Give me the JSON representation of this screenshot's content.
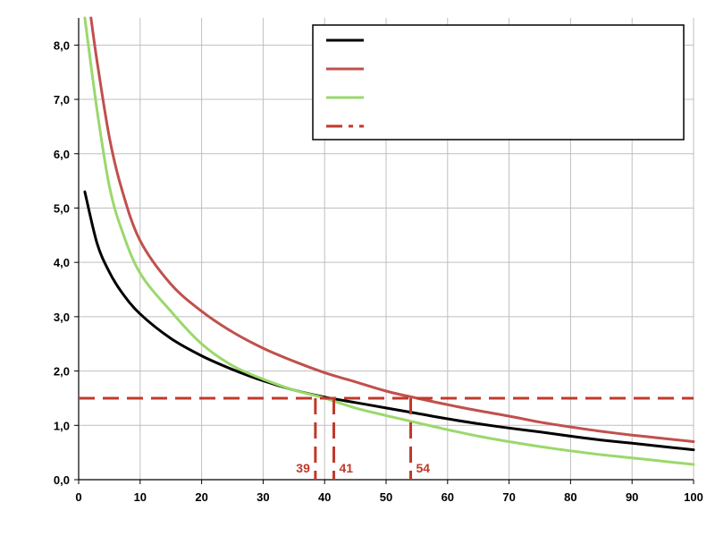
{
  "chart_data": {
    "type": "line",
    "title": "",
    "xlabel": "",
    "ylabel": "",
    "xlim": [
      0,
      100
    ],
    "ylim": [
      0,
      8.5
    ],
    "x_ticks": [
      0,
      10,
      20,
      30,
      40,
      50,
      60,
      70,
      80,
      90,
      100
    ],
    "x_tick_labels": [
      "0",
      "10",
      "20",
      "30",
      "40",
      "50",
      "60",
      "70",
      "80",
      "90",
      "100"
    ],
    "y_ticks": [
      0,
      1,
      2,
      3,
      4,
      5,
      6,
      7,
      8
    ],
    "y_tick_labels": [
      "0,0",
      "1,0",
      "2,0",
      "3,0",
      "4,0",
      "5,0",
      "6,0",
      "7,0",
      "8,0"
    ],
    "grid": true,
    "legend": {
      "placement": "top-right",
      "entries": [
        {
          "label": "",
          "color": "#000000",
          "style": "solid"
        },
        {
          "label": "",
          "color": "#c0504d",
          "style": "solid"
        },
        {
          "label": "",
          "color": "#9bd86c",
          "style": "solid"
        },
        {
          "label": "",
          "color": "#c0392b",
          "style": "dash-dot"
        }
      ]
    },
    "series": [
      {
        "color": "#000000",
        "x": [
          1,
          3,
          5,
          7,
          10,
          15,
          20,
          25,
          30,
          35,
          40,
          45,
          50,
          55,
          60,
          65,
          70,
          75,
          80,
          85,
          90,
          95,
          100
        ],
        "y": [
          5.3,
          4.35,
          3.82,
          3.45,
          3.05,
          2.6,
          2.28,
          2.03,
          1.82,
          1.65,
          1.52,
          1.42,
          1.32,
          1.22,
          1.12,
          1.03,
          0.95,
          0.88,
          0.8,
          0.73,
          0.67,
          0.61,
          0.55
        ]
      },
      {
        "color": "#c0504d",
        "x": [
          2,
          3,
          5,
          7,
          10,
          15,
          20,
          25,
          30,
          35,
          40,
          45,
          50,
          55,
          60,
          65,
          70,
          75,
          80,
          85,
          90,
          95,
          100
        ],
        "y": [
          8.5,
          7.7,
          6.3,
          5.35,
          4.4,
          3.6,
          3.1,
          2.72,
          2.42,
          2.18,
          1.97,
          1.8,
          1.63,
          1.5,
          1.38,
          1.27,
          1.17,
          1.06,
          0.97,
          0.89,
          0.82,
          0.76,
          0.7
        ]
      },
      {
        "color": "#9bd86c",
        "x": [
          1,
          3,
          5,
          7,
          10,
          15,
          20,
          25,
          30,
          35,
          40,
          45,
          50,
          55,
          60,
          65,
          70,
          75,
          80,
          85,
          90,
          95,
          100
        ],
        "y": [
          8.5,
          6.8,
          5.4,
          4.6,
          3.8,
          3.1,
          2.5,
          2.1,
          1.85,
          1.65,
          1.5,
          1.32,
          1.18,
          1.05,
          0.92,
          0.8,
          0.7,
          0.61,
          0.53,
          0.46,
          0.4,
          0.34,
          0.28
        ]
      }
    ],
    "threshold": {
      "y": 1.5,
      "color": "#c0392b",
      "style": "dashed",
      "x_range": [
        0,
        100
      ]
    },
    "intersections": [
      {
        "x": 38.5,
        "label": "39",
        "label_side": "left"
      },
      {
        "x": 41.5,
        "label": "41",
        "label_side": "right"
      },
      {
        "x": 54,
        "label": "54",
        "label_side": "right"
      }
    ]
  }
}
